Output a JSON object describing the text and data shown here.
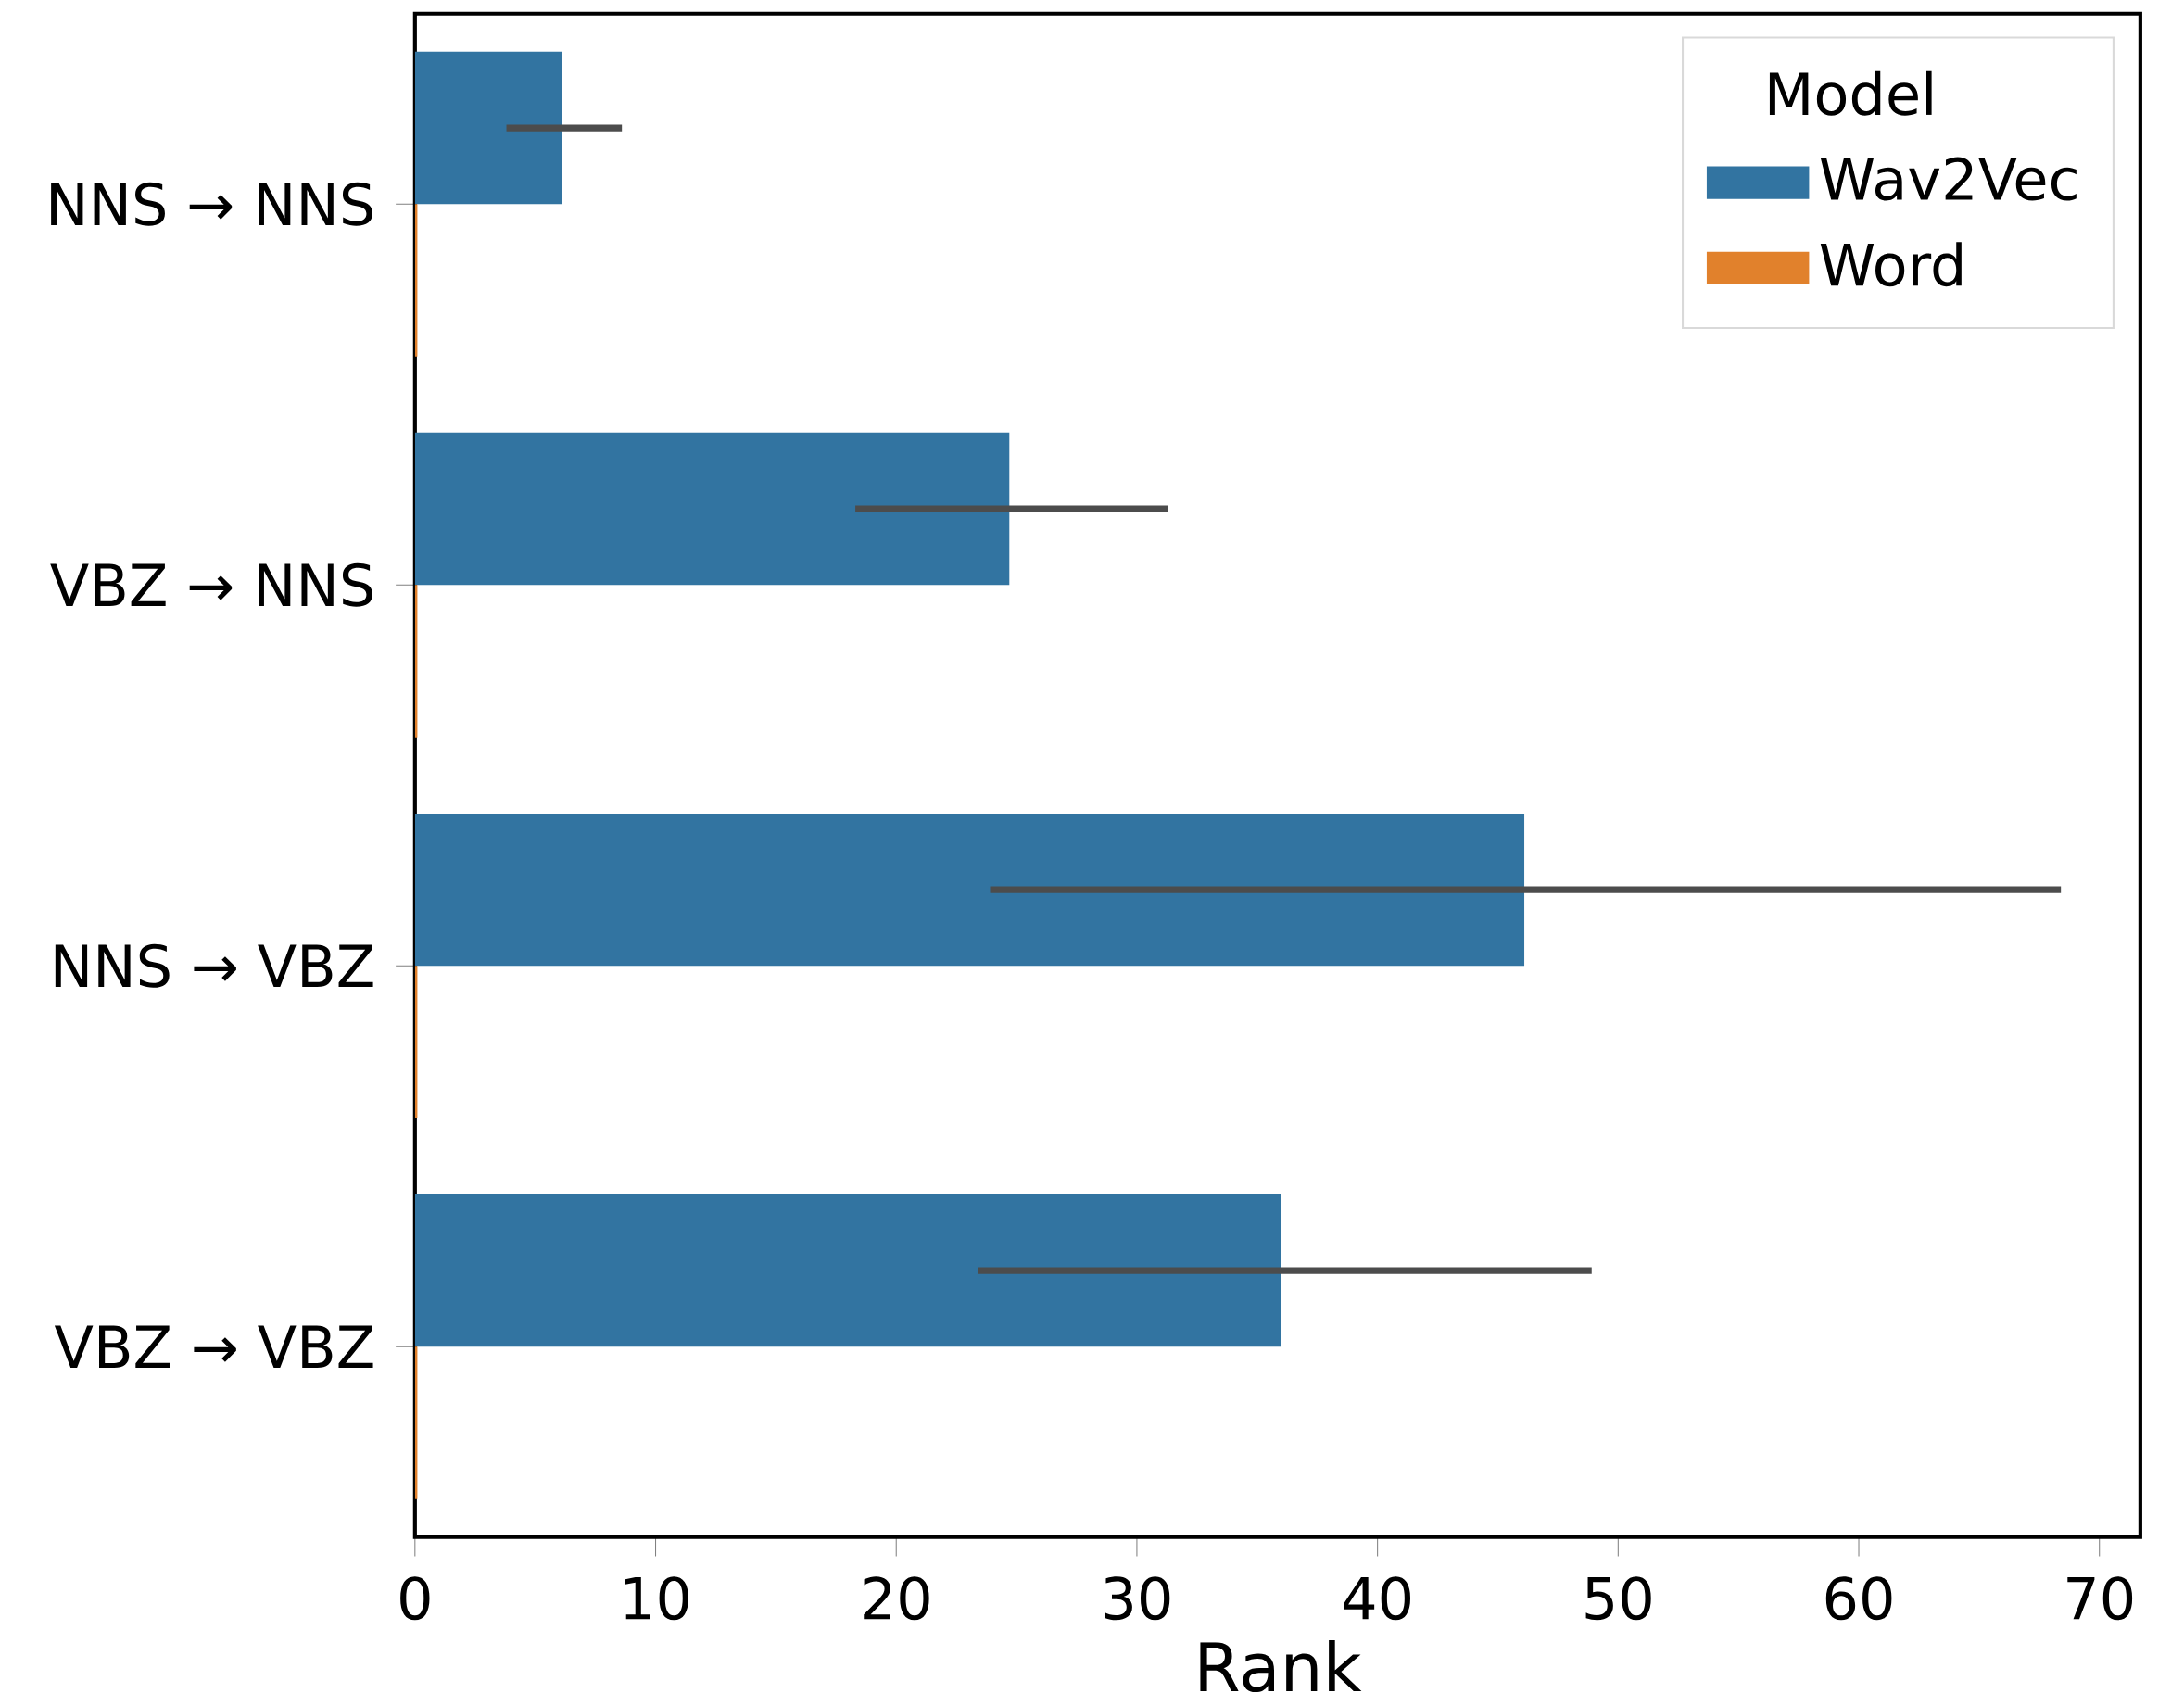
{
  "chart_data": {
    "type": "bar",
    "orientation": "horizontal",
    "xlabel": "Rank",
    "legend_title": "Model",
    "legend": "top right",
    "categories": [
      "NNS → NNS",
      "VBZ → NNS",
      "NNS → VBZ",
      "VBZ → VBZ"
    ],
    "series": [
      {
        "name": "Wav2Vec",
        "color": "#3274a1",
        "values": [
          6.1,
          24.7,
          46.1,
          36.0
        ],
        "errors": [
          [
            3.8,
            8.6
          ],
          [
            18.3,
            31.3
          ],
          [
            23.9,
            68.4
          ],
          [
            23.4,
            48.9
          ]
        ]
      },
      {
        "name": "Word",
        "color": "#e1812c",
        "values": [
          0.1,
          0.1,
          0.1,
          0.1
        ]
      }
    ],
    "xlim": [
      0,
      71.7
    ],
    "xticks": [
      0,
      10,
      20,
      30,
      40,
      50,
      60,
      70
    ]
  }
}
